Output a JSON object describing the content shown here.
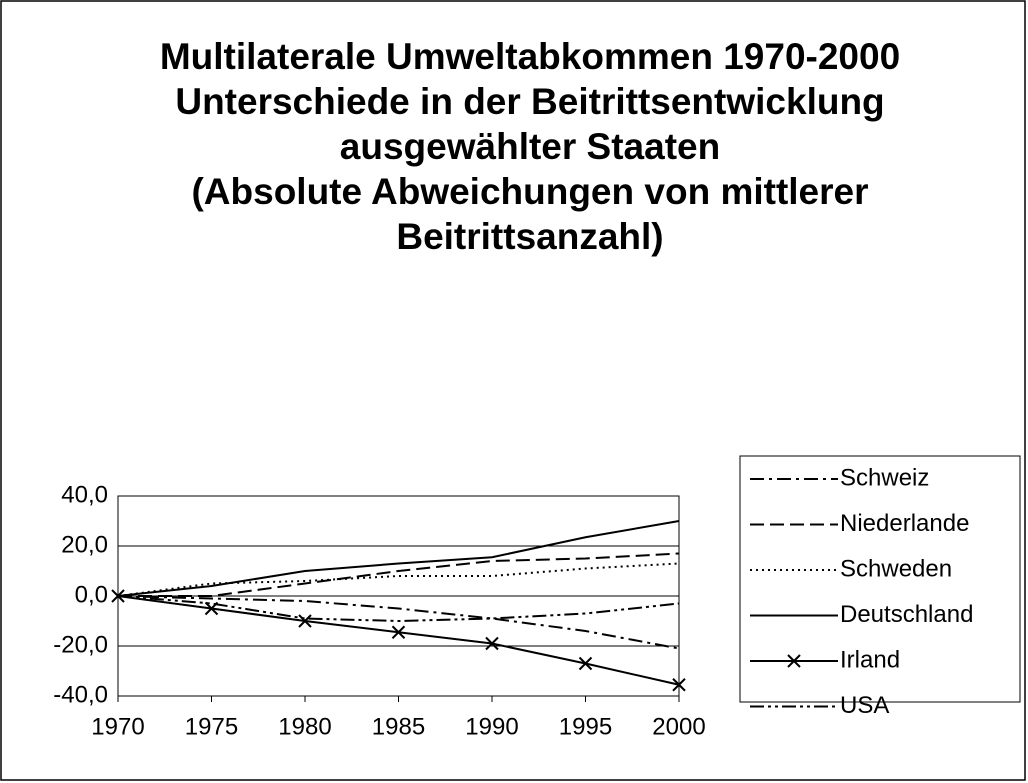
{
  "chart_data": {
    "type": "line",
    "title": [
      "Multilaterale Umweltabkommen 1970-2000",
      "Unterschiede in der Beitrittsentwicklung ausgewählter Staaten",
      "(Absolute Abweichungen von mittlerer Beitrittsanzahl)"
    ],
    "x": [
      1970,
      1975,
      1980,
      1985,
      1990,
      1995,
      2000
    ],
    "xlim": [
      1970,
      2000
    ],
    "xticks": [
      1970,
      1975,
      1980,
      1985,
      1990,
      1995,
      2000
    ],
    "ylim": [
      -40,
      40
    ],
    "yticks": [
      {
        "value": -40,
        "label": "-40,0"
      },
      {
        "value": -20,
        "label": "-20,0"
      },
      {
        "value": 0,
        "label": "0,0"
      },
      {
        "value": 20,
        "label": "20,0"
      },
      {
        "value": 40,
        "label": "40,0"
      }
    ],
    "grid": true,
    "legend": "right",
    "series": [
      {
        "name": "Schweiz",
        "color": "#000000",
        "dash": "14 5 3 5",
        "values": [
          0,
          -1,
          -2,
          -5,
          -9,
          -14,
          -21
        ]
      },
      {
        "name": "Niederlande",
        "color": "#000000",
        "dash": "14 6",
        "values": [
          0,
          0,
          5,
          10,
          14,
          15,
          17
        ]
      },
      {
        "name": "Schweden",
        "color": "#000000",
        "dash": "2 4",
        "values": [
          0,
          5,
          6,
          8,
          8,
          11,
          13
        ]
      },
      {
        "name": "Deutschland",
        "color": "#000000",
        "dash": "none",
        "values": [
          0,
          4,
          10,
          13,
          15.5,
          23.5,
          30
        ]
      },
      {
        "name": "Irland",
        "color": "#000000",
        "dash": "none",
        "marker": "x",
        "values": [
          0,
          -5,
          -10,
          -14.5,
          -19,
          -27,
          -35.5
        ]
      },
      {
        "name": "USA",
        "color": "#000000",
        "dash": "14 4 3 4 3 4",
        "values": [
          0,
          -3,
          -9,
          -10,
          -9,
          -7,
          -3
        ]
      }
    ]
  }
}
